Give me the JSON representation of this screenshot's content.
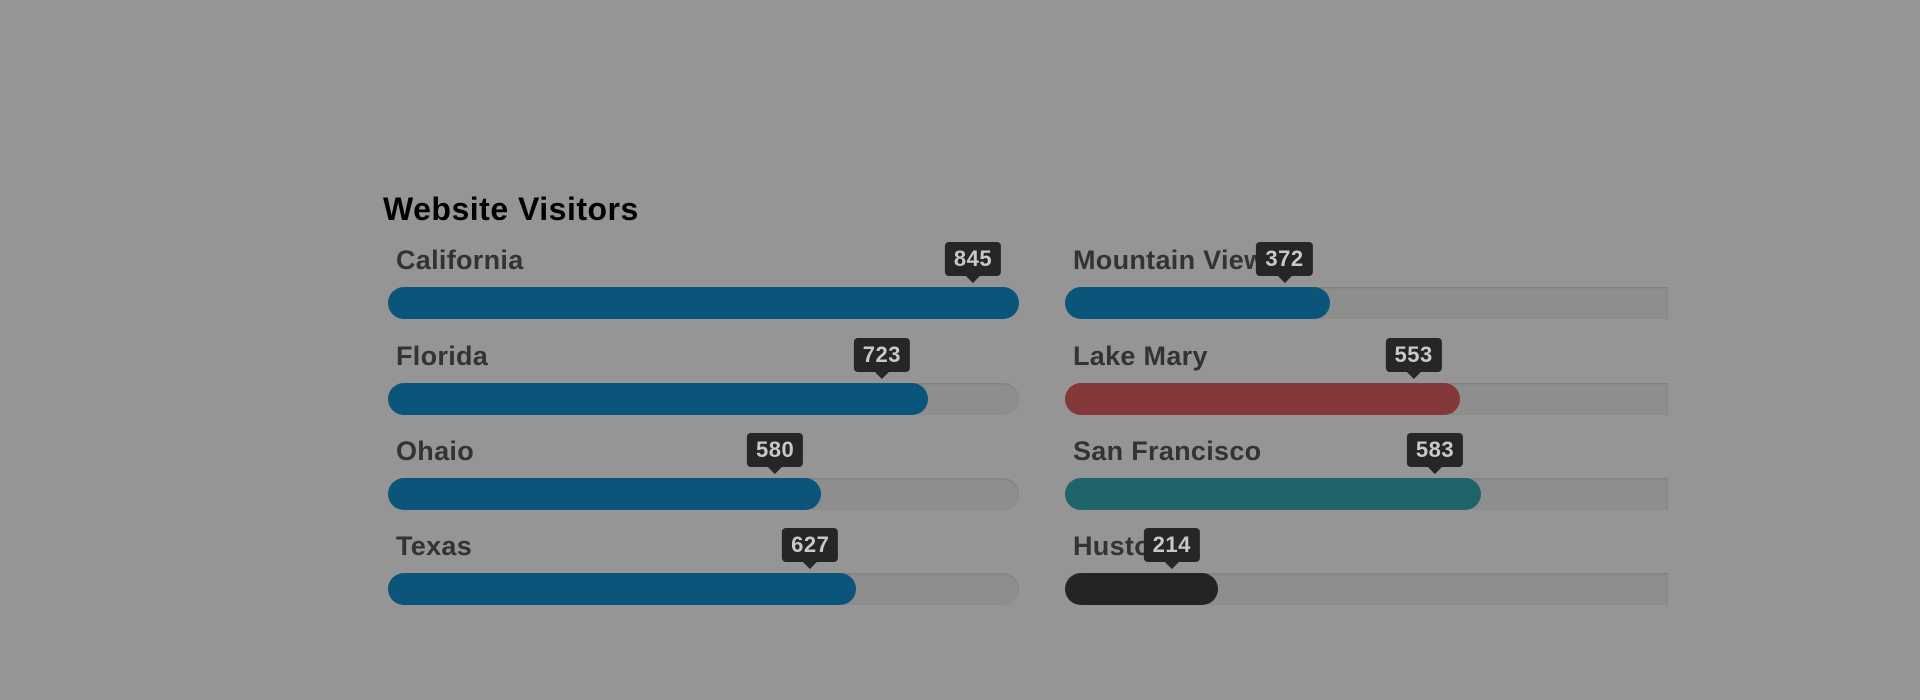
{
  "chart_data": {
    "type": "bar",
    "title": "Website Visitors",
    "orientation": "horizontal",
    "max": 845,
    "columns": [
      {
        "bars": [
          {
            "label": "California",
            "value": 845,
            "color": "#0b547a"
          },
          {
            "label": "Florida",
            "value": 723,
            "color": "#0b547a"
          },
          {
            "label": "Ohaio",
            "value": 580,
            "color": "#0b547a"
          },
          {
            "label": "Texas",
            "value": 627,
            "color": "#0b547a"
          }
        ]
      },
      {
        "bars": [
          {
            "label": "Mountain View",
            "value": 372,
            "color": "#0b547a"
          },
          {
            "label": "Lake Mary",
            "value": 553,
            "color": "#843839"
          },
          {
            "label": "San Francisco",
            "value": 583,
            "color": "#1e6468"
          },
          {
            "label": "Huston",
            "value": 214,
            "color": "#222426"
          }
        ]
      }
    ]
  }
}
